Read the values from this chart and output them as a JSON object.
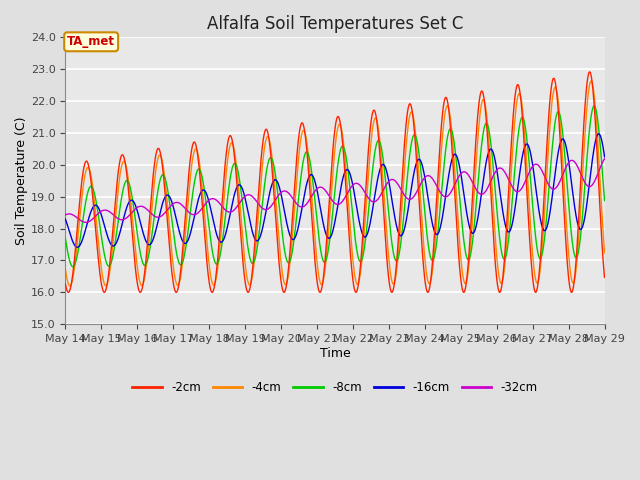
{
  "title": "Alfalfa Soil Temperatures Set C",
  "xlabel": "Time",
  "ylabel": "Soil Temperature (C)",
  "ylim": [
    15.0,
    24.0
  ],
  "yticks": [
    15.0,
    16.0,
    17.0,
    18.0,
    19.0,
    20.0,
    21.0,
    22.0,
    23.0,
    24.0
  ],
  "annotation": "TA_met",
  "annotation_color": "#cc0000",
  "annotation_bg": "#ffffdd",
  "annotation_border": "#cc8800",
  "colors": {
    "-2cm": "#ff2200",
    "-4cm": "#ff8800",
    "-8cm": "#00cc00",
    "-16cm": "#0000dd",
    "-32cm": "#cc00cc"
  },
  "legend_labels": [
    "-2cm",
    "-4cm",
    "-8cm",
    "-16cm",
    "-32cm"
  ],
  "bg_color": "#e0e0e0",
  "plot_bg": "#e8e8e8",
  "grid_color": "white",
  "start_day": 14,
  "end_day": 29
}
